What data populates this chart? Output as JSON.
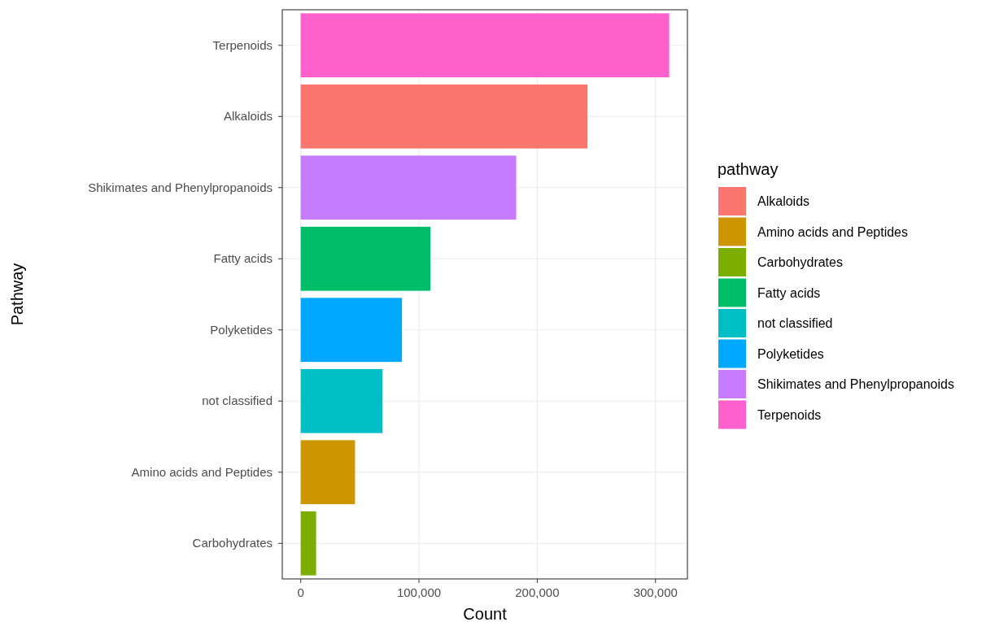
{
  "chart_data": {
    "type": "bar",
    "orientation": "horizontal",
    "xlabel": "Count",
    "ylabel": "Pathway",
    "legend_title": "pathway",
    "legend": "right",
    "grid": true,
    "categories": [
      "Terpenoids",
      "Alkaloids",
      "Shikimates and Phenylpropanoids",
      "Fatty acids",
      "Polyketides",
      "not classified",
      "Amino acids and Peptides",
      "Carbohydrates"
    ],
    "xlim": [
      -15600,
      327000
    ],
    "xticks": [
      {
        "value": 0,
        "label": "0"
      },
      {
        "value": 100000,
        "label": "100,000"
      },
      {
        "value": 200000,
        "label": "200,000"
      },
      {
        "value": 300000,
        "label": "300,000"
      }
    ],
    "series": [
      {
        "name": "Alkaloids",
        "color": "#f8766d",
        "values": [
          null,
          242500,
          null,
          null,
          null,
          null,
          null,
          null
        ]
      },
      {
        "name": "Amino acids and Peptides",
        "color": "#cd9600",
        "values": [
          null,
          null,
          null,
          null,
          null,
          null,
          45900,
          null
        ]
      },
      {
        "name": "Carbohydrates",
        "color": "#7cae00",
        "values": [
          null,
          null,
          null,
          null,
          null,
          null,
          null,
          13000
        ]
      },
      {
        "name": "Fatty acids",
        "color": "#00be67",
        "values": [
          null,
          null,
          null,
          109600,
          null,
          null,
          null,
          null
        ]
      },
      {
        "name": "not classified",
        "color": "#00bfc4",
        "values": [
          null,
          null,
          null,
          null,
          null,
          69200,
          null,
          null
        ]
      },
      {
        "name": "Polyketides",
        "color": "#00a9ff",
        "values": [
          null,
          null,
          null,
          null,
          85600,
          null,
          null,
          null
        ]
      },
      {
        "name": "Shikimates and Phenylpropanoids",
        "color": "#c77cff",
        "values": [
          null,
          null,
          182200,
          null,
          null,
          null,
          null,
          null
        ]
      },
      {
        "name": "Terpenoids",
        "color": "#ff61cc",
        "values": [
          311600,
          null,
          null,
          null,
          null,
          null,
          null,
          null
        ]
      }
    ]
  }
}
